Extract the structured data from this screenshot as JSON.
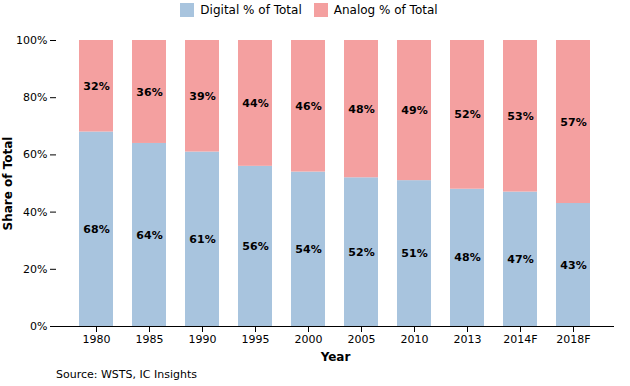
{
  "chart_data": {
    "type": "bar",
    "stacked": true,
    "categories": [
      "1980",
      "1985",
      "1990",
      "1995",
      "2000",
      "2005",
      "2010",
      "2013",
      "2014F",
      "2018F"
    ],
    "series": [
      {
        "name": "Digital % of Total",
        "color": "#a8c4de",
        "values": [
          68,
          64,
          61,
          56,
          54,
          52,
          51,
          48,
          47,
          43
        ],
        "value_labels": [
          "68%",
          "64%",
          "61%",
          "56%",
          "54%",
          "52%",
          "51%",
          "48%",
          "47%",
          "43%"
        ]
      },
      {
        "name": "Analog % of Total",
        "color": "#f4a0a0",
        "values": [
          32,
          36,
          39,
          44,
          46,
          48,
          49,
          52,
          53,
          57
        ],
        "value_labels": [
          "32%",
          "36%",
          "39%",
          "44%",
          "46%",
          "48%",
          "49%",
          "52%",
          "53%",
          "57%"
        ]
      }
    ],
    "x_label": "Year",
    "y_label": "Share of Total",
    "annotations": [
      "Source: WSTS, IC Insights"
    ],
    "ylim": [
      0,
      100
    ],
    "yticks": [
      {
        "value": 0,
        "label": "0%"
      },
      {
        "value": 20,
        "label": "20%"
      },
      {
        "value": 40,
        "label": "40%"
      },
      {
        "value": 60,
        "label": "60%"
      },
      {
        "value": 80,
        "label": "80%"
      },
      {
        "value": 100,
        "label": "100%"
      }
    ],
    "data_labels": true,
    "grid": false,
    "legend": "top"
  }
}
